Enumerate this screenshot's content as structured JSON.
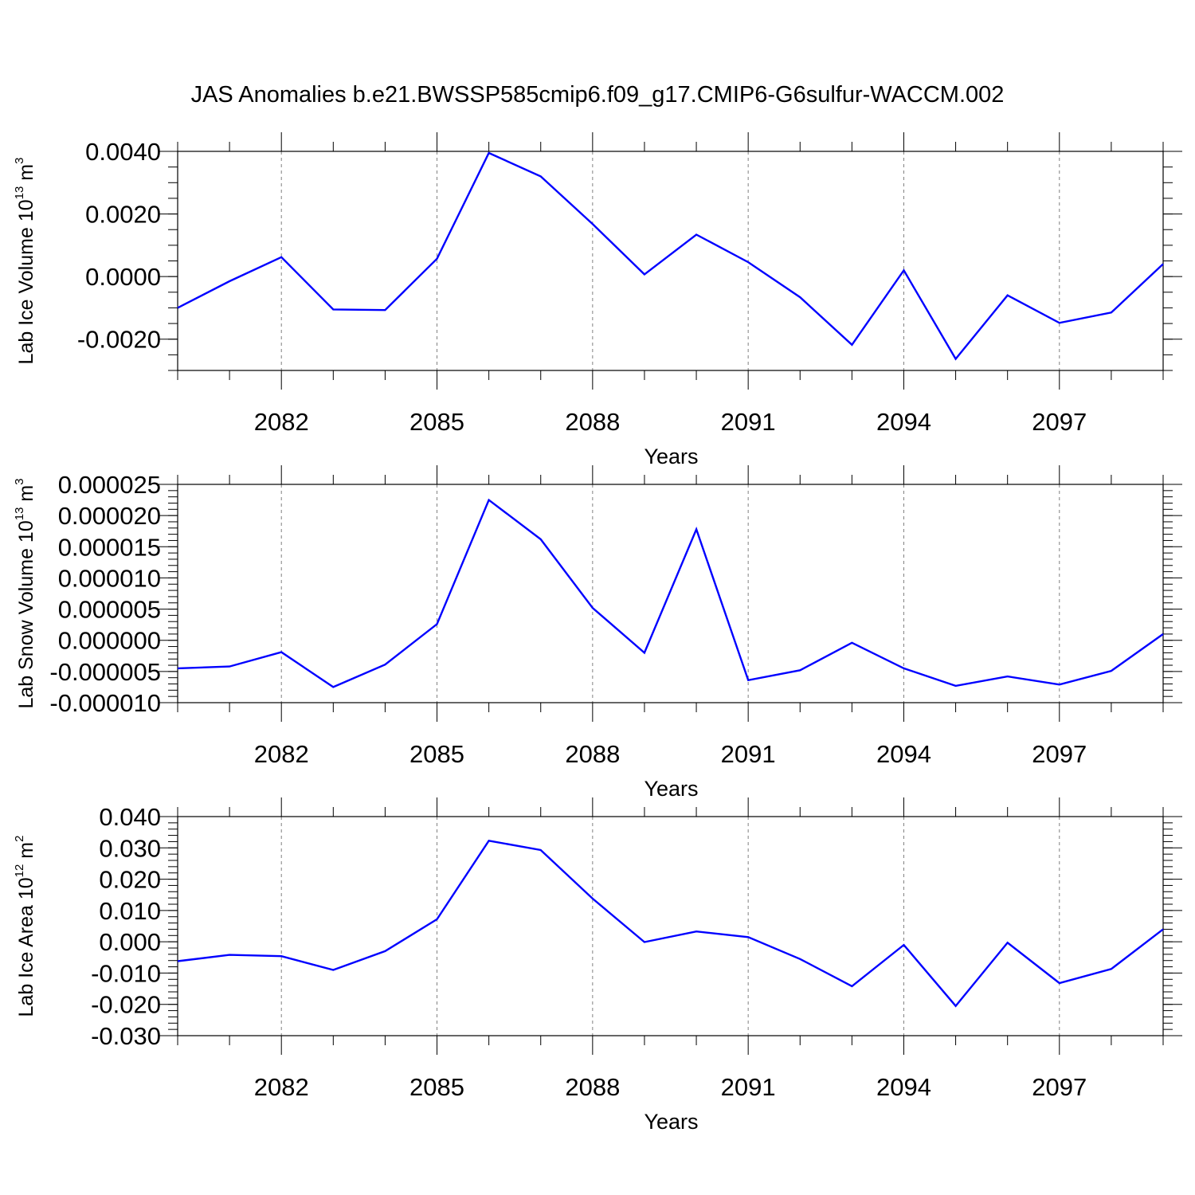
{
  "title": "JAS Anomalies b.e21.BWSSP585cmip6.f09_g17.CMIP6-G6sulfur-WACCM.002",
  "chart_data": [
    {
      "type": "line",
      "ylabel": "Lab Ice Volume 10",
      "ylabel_exponent": "13",
      "ylabel_unit": " m",
      "ylabel_unit_exponent": "3",
      "xlabel": "Years",
      "xlim": [
        2080,
        2099
      ],
      "ylim": [
        -0.003,
        0.004
      ],
      "yticks": [
        -0.002,
        0.0,
        0.002,
        0.004
      ],
      "ytick_labels": [
        "-0.0020",
        "0.0000",
        "0.0020",
        "0.0040"
      ],
      "yminor_step": 0.0005,
      "xticks": [
        2082,
        2085,
        2088,
        2091,
        2094,
        2097
      ],
      "xtick_labels": [
        "2082",
        "2085",
        "2088",
        "2091",
        "2094",
        "2097"
      ],
      "x": [
        2080,
        2081,
        2082,
        2083,
        2084,
        2085,
        2086,
        2087,
        2088,
        2089,
        2090,
        2091,
        2092,
        2093,
        2094,
        2095,
        2096,
        2097,
        2098,
        2099
      ],
      "series": [
        {
          "color": "#0000ff",
          "values": [
            -0.001,
            -0.00015,
            0.00062,
            -0.00105,
            -0.00107,
            0.00057,
            0.00395,
            0.0032,
            0.00168,
            7e-05,
            0.00134,
            0.00046,
            -0.00066,
            -0.00218,
            0.0002,
            -0.00263,
            -0.0006,
            -0.00148,
            -0.00115,
            0.0004
          ]
        }
      ],
      "grid": "dashed vertical at major x ticks"
    },
    {
      "type": "line",
      "ylabel": "Lab Snow Volume 10",
      "ylabel_exponent": "13",
      "ylabel_unit": " m",
      "ylabel_unit_exponent": "3",
      "xlabel": "Years",
      "xlim": [
        2080,
        2099
      ],
      "ylim": [
        -1e-05,
        2.5e-05
      ],
      "yticks": [
        -1e-05,
        -5e-06,
        0.0,
        5e-06,
        1e-05,
        1.5e-05,
        2e-05,
        2.5e-05
      ],
      "ytick_labels": [
        "-0.000010",
        "-0.000005",
        "0.000000",
        "0.000005",
        "0.000010",
        "0.000015",
        "0.000020",
        "0.000025"
      ],
      "yminor_step": 1e-06,
      "xticks": [
        2082,
        2085,
        2088,
        2091,
        2094,
        2097
      ],
      "xtick_labels": [
        "2082",
        "2085",
        "2088",
        "2091",
        "2094",
        "2097"
      ],
      "x": [
        2080,
        2081,
        2082,
        2083,
        2084,
        2085,
        2086,
        2087,
        2088,
        2089,
        2090,
        2091,
        2092,
        2093,
        2094,
        2095,
        2096,
        2097,
        2098,
        2099
      ],
      "series": [
        {
          "color": "#0000ff",
          "values": [
            -4.5e-06,
            -4.2e-06,
            -1.9e-06,
            -7.5e-06,
            -3.9e-06,
            2.6e-06,
            2.25e-05,
            1.62e-05,
            5.2e-06,
            -2e-06,
            1.78e-05,
            -6.4e-06,
            -4.8e-06,
            -4e-07,
            -4.5e-06,
            -7.3e-06,
            -5.8e-06,
            -7.1e-06,
            -4.9e-06,
            1e-06
          ]
        }
      ],
      "grid": "dashed vertical at major x ticks"
    },
    {
      "type": "line",
      "ylabel": "Lab Ice Area 10",
      "ylabel_exponent": "12",
      "ylabel_unit": " m",
      "ylabel_unit_exponent": "2",
      "xlabel": "Years",
      "xlim": [
        2080,
        2099
      ],
      "ylim": [
        -0.03,
        0.04
      ],
      "yticks": [
        -0.03,
        -0.02,
        -0.01,
        0.0,
        0.01,
        0.02,
        0.03,
        0.04
      ],
      "ytick_labels": [
        "-0.030",
        "-0.020",
        "-0.010",
        "0.000",
        "0.010",
        "0.020",
        "0.030",
        "0.040"
      ],
      "yminor_step": 0.002,
      "xticks": [
        2082,
        2085,
        2088,
        2091,
        2094,
        2097
      ],
      "xtick_labels": [
        "2082",
        "2085",
        "2088",
        "2091",
        "2094",
        "2097"
      ],
      "x": [
        2080,
        2081,
        2082,
        2083,
        2084,
        2085,
        2086,
        2087,
        2088,
        2089,
        2090,
        2091,
        2092,
        2093,
        2094,
        2095,
        2096,
        2097,
        2098,
        2099
      ],
      "series": [
        {
          "color": "#0000ff",
          "values": [
            -0.0062,
            -0.0042,
            -0.0046,
            -0.009,
            -0.003,
            0.0072,
            0.0323,
            0.0293,
            0.0138,
            -0.0001,
            0.0033,
            0.0015,
            -0.0055,
            -0.0142,
            -0.001,
            -0.0205,
            -0.0003,
            -0.0132,
            -0.0087,
            0.004
          ]
        }
      ],
      "grid": "dashed vertical at major x ticks"
    }
  ]
}
